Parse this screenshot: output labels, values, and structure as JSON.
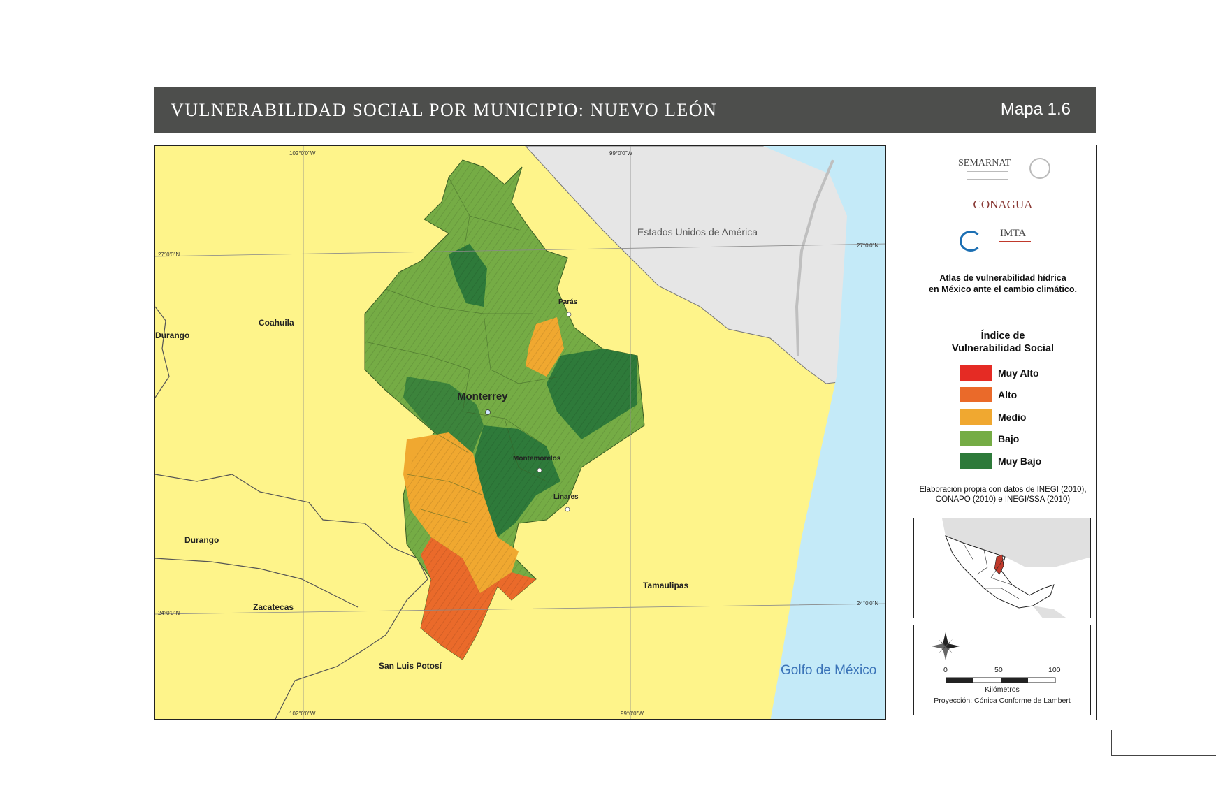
{
  "header": {
    "title": "VULNERABILIDAD SOCIAL POR MUNICIPIO: NUEVO LEÓN",
    "map_number": "Mapa 1.6"
  },
  "map": {
    "coordinates": {
      "lon_left_top": "102°0'0\"W",
      "lon_right_top": "99°0'0\"W",
      "lon_left_bottom": "102°0'0\"W",
      "lon_right_bottom": "99°0'0\"W",
      "lat_27_left": "27°0'0\"N",
      "lat_27_right": "27°0'0\"N",
      "lat_24_left": "24°0'0\"N",
      "lat_24_right": "24°0'0\"N"
    },
    "states": {
      "coahuila": "Coahuila",
      "durango_north": "Durango",
      "durango_south": "Durango",
      "zacatecas": "Zacatecas",
      "san_luis_potosi": "San Luis Potosí",
      "tamaulipas": "Tamaulipas",
      "usa": "Estados Unidos de América",
      "gulf": "Golfo de México"
    },
    "cities": {
      "monterrey": "Monterrey",
      "paras": "Parás",
      "montemorelos": "Montemorelos",
      "linares": "Linares"
    },
    "colors": {
      "outside": "#fef48a",
      "usa": "#e6e6e6",
      "sea": "#c4eaf8",
      "muy_alto": "#e52b24",
      "alto": "#ea6a2a",
      "medio": "#f0a830",
      "bajo": "#75ac45",
      "muy_bajo": "#2e7a3a"
    }
  },
  "sidebar": {
    "institutions": {
      "semarnat": "SEMARNAT",
      "conagua": "CONAGUA",
      "imta": "IMTA"
    },
    "atlas_title_line1": "Atlas de vulnerabilidad hídrica",
    "atlas_title_line2": "en México ante el cambio climático.",
    "legend": {
      "title_line1": "Índice de",
      "title_line2": "Vulnerabilidad Social",
      "items": [
        {
          "label": "Muy Alto",
          "color": "#e52b24"
        },
        {
          "label": "Alto",
          "color": "#ea6a2a"
        },
        {
          "label": "Medio",
          "color": "#f0a830"
        },
        {
          "label": "Bajo",
          "color": "#75ac45"
        },
        {
          "label": "Muy Bajo",
          "color": "#2e7a3a"
        }
      ]
    },
    "credits_line1": "Elaboración propia con datos de INEGI (2010),",
    "credits_line2": "CONAPO (2010) e INEGI/SSA (2010)",
    "scale": {
      "ticks": [
        "0",
        "50",
        "100"
      ],
      "unit": "Kilómetros",
      "projection": "Proyección: Cónica Conforme de Lambert"
    }
  }
}
